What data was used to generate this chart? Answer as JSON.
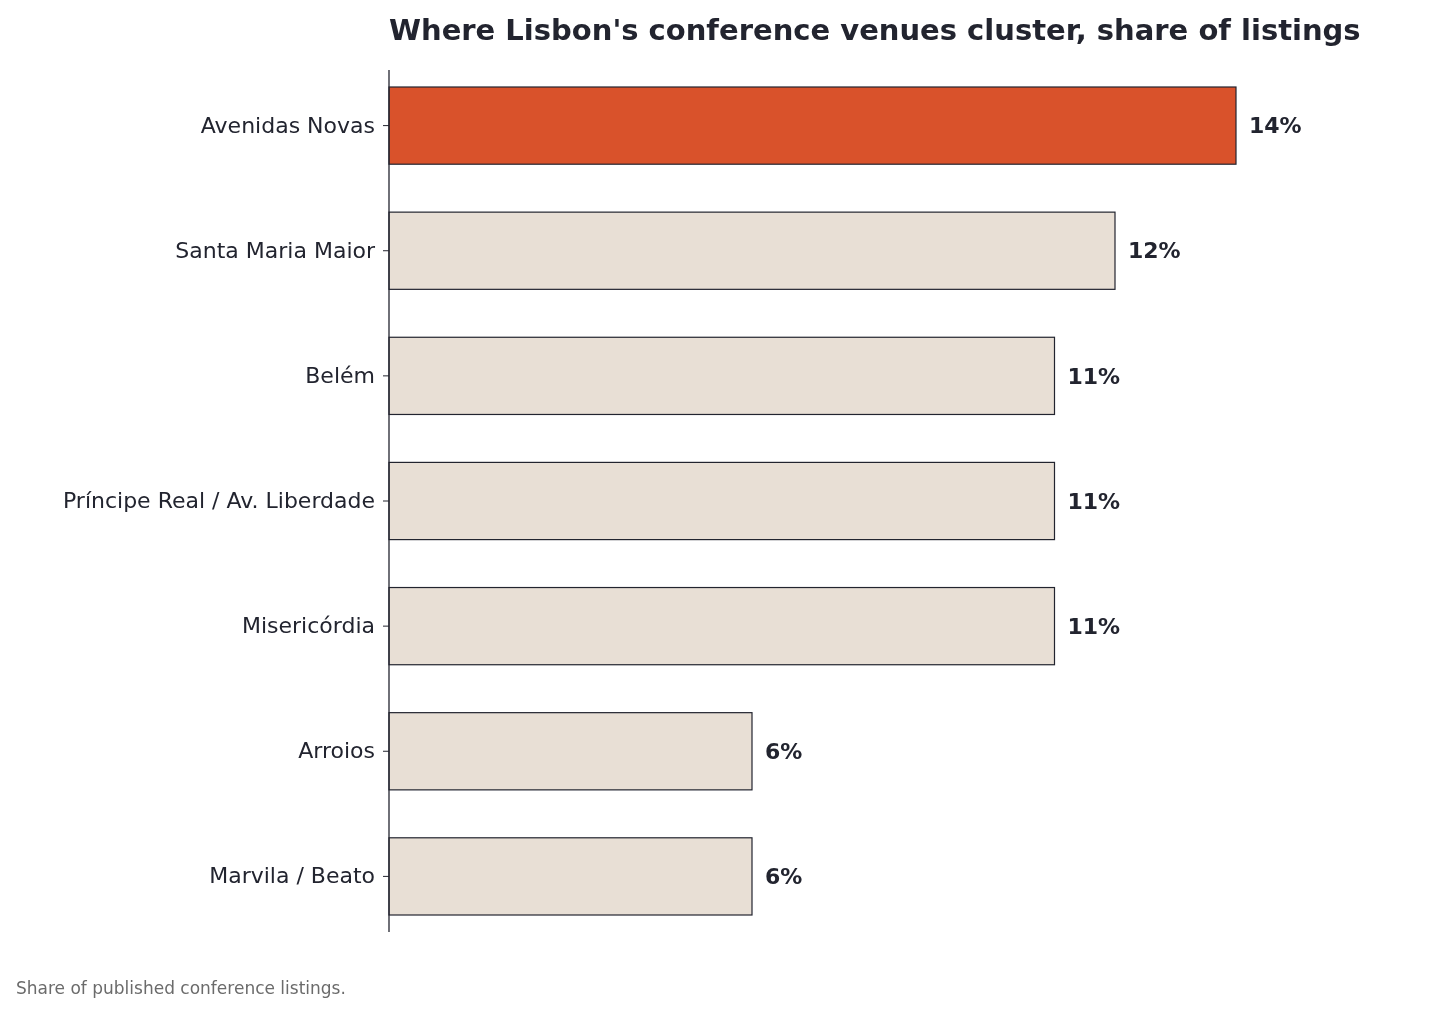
{
  "chart_data": {
    "type": "bar",
    "orientation": "horizontal",
    "title": "Where Lisbon's conference venues cluster, share of listings",
    "categories": [
      "Avenidas Novas",
      "Santa Maria Maior",
      "Belém",
      "Príncipe Real / Av. Liberdade",
      "Misericórdia",
      "Arroios",
      "Marvila / Beato"
    ],
    "values": [
      14,
      12,
      11,
      11,
      11,
      6,
      6
    ],
    "colors": [
      "#d9522b",
      "#e8dfd5",
      "#e8dfd5",
      "#e8dfd5",
      "#e8dfd5",
      "#e8dfd5",
      "#e8dfd5"
    ],
    "value_labels": [
      "14%",
      "12%",
      "11%",
      "11%",
      "11%",
      "6%",
      "6%"
    ],
    "annotations": [
      "Share of published conference listings."
    ]
  }
}
